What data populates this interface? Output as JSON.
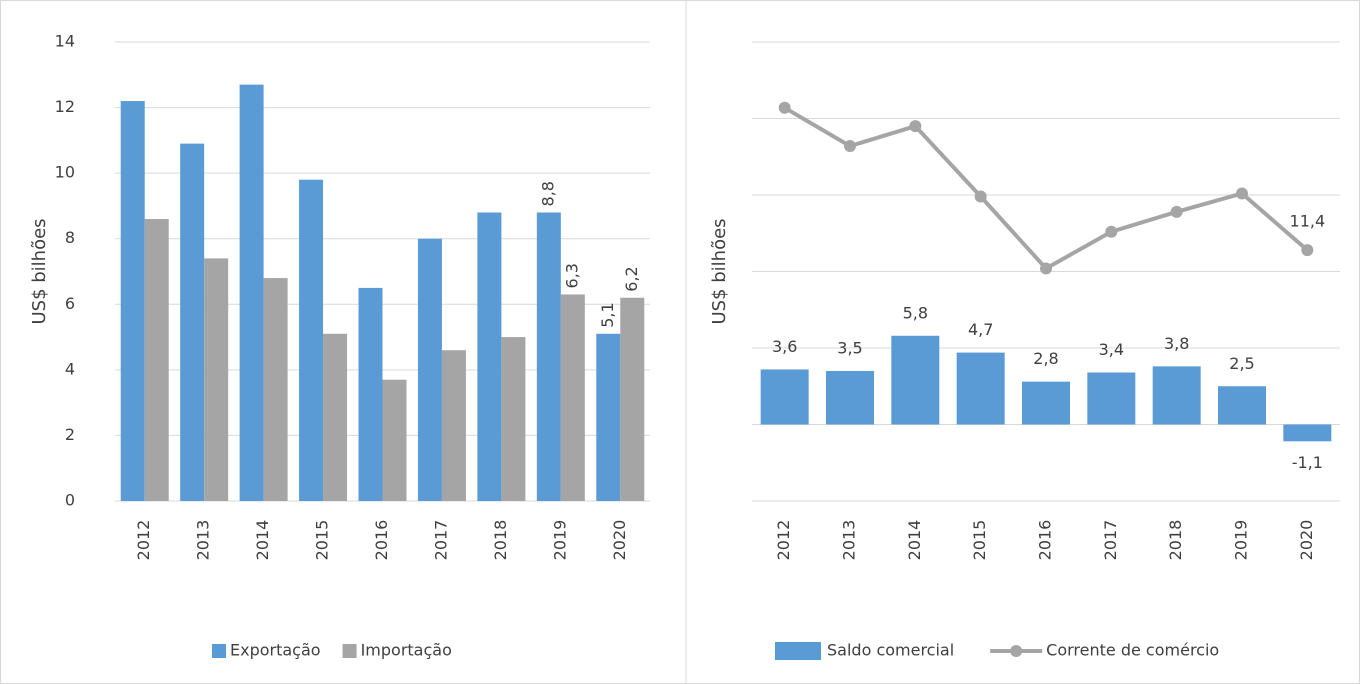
{
  "chart_data": [
    {
      "type": "bar",
      "y_label": "US$ bilhões",
      "categories": [
        "2012",
        "2013",
        "2014",
        "2015",
        "2016",
        "2017",
        "2018",
        "2019",
        "2020"
      ],
      "series": [
        {
          "name": "Exportação",
          "color": "#5b9bd5",
          "values": [
            12.2,
            10.9,
            12.7,
            9.8,
            6.5,
            8.0,
            8.8,
            8.8,
            5.1
          ],
          "value_labels": [
            null,
            null,
            null,
            null,
            null,
            null,
            null,
            "8,8",
            "5,1"
          ]
        },
        {
          "name": "Importação",
          "color": "#a5a5a5",
          "values": [
            8.6,
            7.4,
            6.8,
            5.1,
            3.7,
            4.6,
            5.0,
            6.3,
            6.2
          ],
          "value_labels": [
            null,
            null,
            null,
            null,
            null,
            null,
            null,
            "6,3",
            "6,2"
          ]
        }
      ],
      "ylim": [
        0,
        14
      ],
      "yticks": [
        0,
        2,
        4,
        6,
        8,
        10,
        12,
        14
      ],
      "ytick_labels": true,
      "grid": true,
      "legend": "bottom"
    },
    {
      "type": "combo",
      "y_label": "US$ bilhões",
      "categories": [
        "2012",
        "2013",
        "2014",
        "2015",
        "2016",
        "2017",
        "2018",
        "2019",
        "2020"
      ],
      "series": [
        {
          "name": "Saldo comercial",
          "type": "bar",
          "color": "#5b9bd5",
          "values": [
            3.6,
            3.5,
            5.8,
            4.7,
            2.8,
            3.4,
            3.8,
            2.5,
            -1.1
          ],
          "value_labels": [
            "3,6",
            "3,5",
            "5,8",
            "4,7",
            "2,8",
            "3,4",
            "3,8",
            "2,5",
            "-1,1"
          ]
        },
        {
          "name": "Corrente de comércio",
          "type": "line",
          "color": "#a5a5a5",
          "values": [
            20.7,
            18.2,
            19.5,
            14.9,
            10.2,
            12.6,
            13.9,
            15.1,
            11.4
          ],
          "value_labels": [
            null,
            null,
            null,
            null,
            null,
            null,
            null,
            null,
            "11,4"
          ]
        }
      ],
      "ylim": [
        -5,
        25
      ],
      "yticks": [
        -5,
        0,
        5,
        10,
        15,
        20,
        25
      ],
      "ytick_labels": false,
      "grid": true,
      "legend": "bottom"
    }
  ]
}
